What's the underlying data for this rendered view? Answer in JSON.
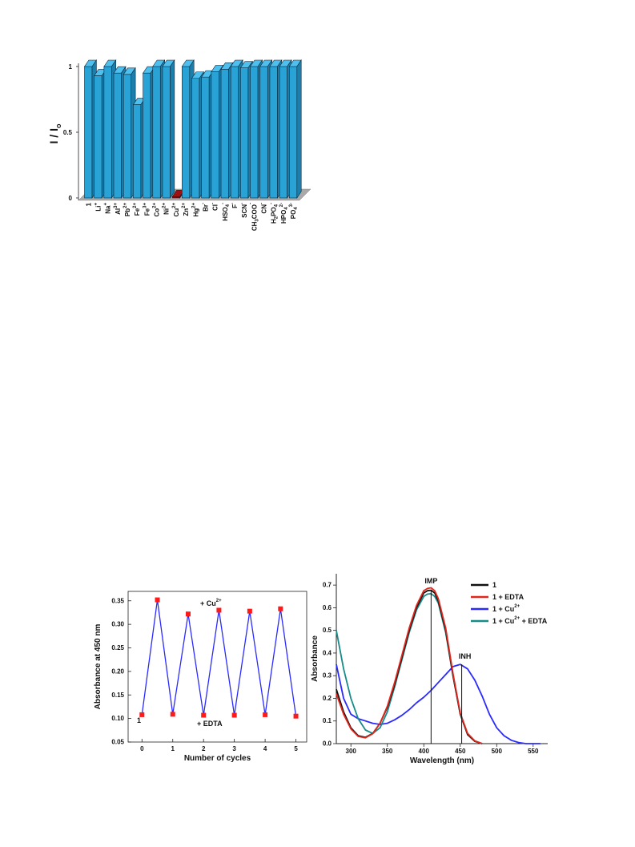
{
  "chart_data": [
    {
      "type": "bar",
      "title": "",
      "ylabel": "I / Io",
      "ylabel_main": "I / I",
      "ylabel_sub": "o",
      "ylim": [
        0,
        1
      ],
      "yticks": [
        "0",
        "0.5",
        "1"
      ],
      "highlight": "Cu2+",
      "colors": {
        "bar": "#29a3d6",
        "highlight": "#8b0000",
        "floor": "#a9a9a9",
        "highlight_label": "#e3261b"
      },
      "categories": [
        {
          "key": "1",
          "label": "1",
          "sup": "",
          "sub": ""
        },
        {
          "key": "Li+",
          "label": "Li",
          "sup": "+",
          "sub": ""
        },
        {
          "key": "Na+",
          "label": "Na",
          "sup": "+",
          "sub": ""
        },
        {
          "key": "Al3+",
          "label": "Al",
          "sup": "3+",
          "sub": ""
        },
        {
          "key": "Pb2+",
          "label": "Pb",
          "sup": "2+",
          "sub": ""
        },
        {
          "key": "Fe2+",
          "label": "Fe",
          "sup": "2+",
          "sub": ""
        },
        {
          "key": "Fe3+",
          "label": "Fe",
          "sup": "3+",
          "sub": ""
        },
        {
          "key": "Co2+",
          "label": "Co",
          "sup": "2+",
          "sub": ""
        },
        {
          "key": "Ni2+",
          "label": "Ni",
          "sup": "2+",
          "sub": ""
        },
        {
          "key": "Cu2+",
          "label": "Cu",
          "sup": "2+",
          "sub": ""
        },
        {
          "key": "Zn2+",
          "label": "Zn",
          "sup": "2+",
          "sub": ""
        },
        {
          "key": "Hg2+",
          "label": "Hg",
          "sup": "2+",
          "sub": ""
        },
        {
          "key": "Br-",
          "label": "Br",
          "sup": "-",
          "sub": ""
        },
        {
          "key": "Cl-",
          "label": "Cl",
          "sup": "-",
          "sub": ""
        },
        {
          "key": "HSO4-",
          "label": "HSO",
          "sup": "-",
          "sub": "4"
        },
        {
          "key": "F-",
          "label": "F",
          "sup": "-",
          "sub": ""
        },
        {
          "key": "SCN-",
          "label": "SCN",
          "sup": "-",
          "sub": ""
        },
        {
          "key": "CH3COO-",
          "label": "CH",
          "sup": "-",
          "sub": "3",
          "tail": "COO"
        },
        {
          "key": "CN-",
          "label": "CN",
          "sup": "-",
          "sub": ""
        },
        {
          "key": "H2PO4-",
          "label": "H",
          "sup": "-",
          "sub": "2",
          "tail": "PO",
          "sub2": "4"
        },
        {
          "key": "HPO42-",
          "label": "HPO",
          "sup": "2-",
          "sub": "4"
        },
        {
          "key": "PO43-",
          "label": "PO",
          "sup": "3-",
          "sub": "4"
        }
      ],
      "values": [
        1.0,
        0.93,
        1.0,
        0.95,
        0.94,
        0.71,
        0.95,
        1.0,
        1.0,
        0.01,
        1.0,
        0.91,
        0.92,
        0.96,
        0.98,
        1.0,
        0.99,
        1.0,
        1.0,
        1.0,
        1.0,
        1.0
      ]
    },
    {
      "type": "scatter",
      "title": "",
      "xlabel": "Number of cycles",
      "ylabel": "Absorbance at 450 nm",
      "xlim": [
        -0.45,
        5.35
      ],
      "ylim": [
        0.05,
        0.37
      ],
      "xticks": [
        "0",
        "1",
        "2",
        "3",
        "4",
        "5"
      ],
      "yticks": [
        "0.05",
        "0.10",
        "0.15",
        "0.20",
        "0.25",
        "0.30",
        "0.35"
      ],
      "annotations": {
        "cu_label": "+ Cu",
        "cu_sup": "2+",
        "edta_label": "+ EDTA",
        "start_label": "1"
      },
      "colors": {
        "line": "#2a2aff",
        "marker": "#ff1a1a"
      },
      "series": [
        {
          "x": [
            0,
            0.5,
            1,
            1.5,
            2,
            2.5,
            3,
            3.5,
            4,
            4.5,
            5
          ],
          "y": [
            0.108,
            0.352,
            0.109,
            0.322,
            0.107,
            0.33,
            0.107,
            0.328,
            0.108,
            0.333,
            0.105
          ]
        }
      ]
    },
    {
      "type": "line",
      "title": "",
      "xlabel": "Wavelength (nm)",
      "ylabel": "Absorbance",
      "xlim": [
        280,
        570
      ],
      "ylim": [
        0,
        0.75
      ],
      "xticks": [
        "300",
        "350",
        "400",
        "450",
        "500",
        "550"
      ],
      "yticks": [
        "0.0",
        "0.1",
        "0.2",
        "0.3",
        "0.4",
        "0.5",
        "0.6",
        "0.7"
      ],
      "annotations": {
        "imp": "IMP",
        "inh": "INH",
        "imp_x": 410,
        "inh_x": 452
      },
      "legend_placement": "top-right",
      "series": [
        {
          "name": "1",
          "color": "#111111",
          "x": [
            280,
            290,
            300,
            310,
            320,
            330,
            340,
            350,
            360,
            370,
            380,
            390,
            400,
            405,
            410,
            415,
            420,
            430,
            440,
            450,
            460,
            470,
            480
          ],
          "y": [
            0.24,
            0.14,
            0.07,
            0.035,
            0.028,
            0.045,
            0.09,
            0.16,
            0.26,
            0.38,
            0.5,
            0.6,
            0.665,
            0.675,
            0.677,
            0.665,
            0.63,
            0.5,
            0.3,
            0.13,
            0.04,
            0.01,
            0.0
          ]
        },
        {
          "name": "1 + EDTA",
          "color": "#e3261b",
          "x": [
            280,
            290,
            300,
            310,
            320,
            330,
            340,
            350,
            360,
            370,
            380,
            390,
            400,
            405,
            410,
            415,
            420,
            430,
            440,
            450,
            460,
            470,
            480
          ],
          "y": [
            0.22,
            0.13,
            0.065,
            0.032,
            0.026,
            0.044,
            0.09,
            0.165,
            0.27,
            0.39,
            0.51,
            0.61,
            0.675,
            0.685,
            0.688,
            0.675,
            0.64,
            0.51,
            0.31,
            0.135,
            0.045,
            0.012,
            0.0
          ]
        },
        {
          "name": "1 + Cu2+",
          "label": "1 + Cu",
          "sup": "2+",
          "color": "#2a2aff",
          "x": [
            280,
            290,
            300,
            310,
            320,
            330,
            340,
            350,
            360,
            370,
            380,
            390,
            400,
            410,
            420,
            430,
            440,
            450,
            460,
            470,
            480,
            490,
            500,
            510,
            520,
            530,
            540,
            550,
            560
          ],
          "y": [
            0.35,
            0.2,
            0.13,
            0.11,
            0.1,
            0.09,
            0.085,
            0.09,
            0.105,
            0.125,
            0.15,
            0.18,
            0.205,
            0.235,
            0.27,
            0.305,
            0.34,
            0.35,
            0.33,
            0.28,
            0.21,
            0.13,
            0.07,
            0.035,
            0.015,
            0.005,
            0.0,
            0.0,
            0.0
          ]
        },
        {
          "name": "1 + Cu2+ + EDTA",
          "label": "1 + Cu",
          "sup": "2+",
          "tail": " + EDTA",
          "color": "#178a8a",
          "x": [
            280,
            290,
            300,
            310,
            320,
            330,
            340,
            350,
            360,
            370,
            380,
            390,
            400,
            405,
            410,
            415,
            420,
            430,
            440,
            450,
            460,
            470,
            480
          ],
          "y": [
            0.5,
            0.33,
            0.2,
            0.11,
            0.06,
            0.045,
            0.07,
            0.14,
            0.25,
            0.37,
            0.49,
            0.59,
            0.65,
            0.66,
            0.662,
            0.65,
            0.62,
            0.49,
            0.3,
            0.13,
            0.045,
            0.012,
            0.0
          ]
        }
      ]
    }
  ]
}
